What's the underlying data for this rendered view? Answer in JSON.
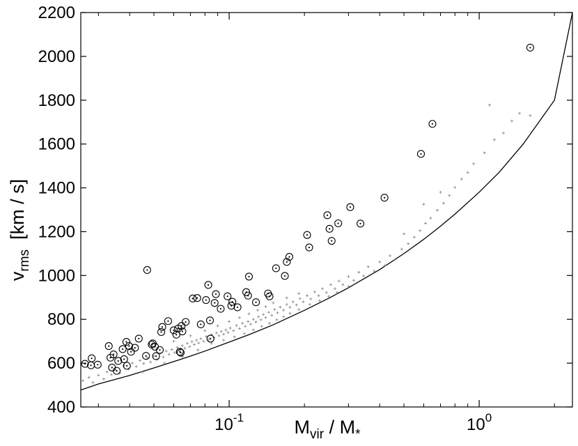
{
  "chart_data": {
    "type": "scatter",
    "title": "",
    "xlabel": {
      "main": "M",
      "sub1": "vir",
      "sep": " / M",
      "sub2": "*"
    },
    "ylabel": {
      "main": "v",
      "sub": "rms",
      "unit": "[km / s]"
    },
    "x_scale": "log",
    "xlim": [
      0.0255,
      2.36
    ],
    "ylim": [
      400,
      2200
    ],
    "grid": false,
    "legend": "none",
    "yticks": [
      400,
      600,
      800,
      1000,
      1200,
      1400,
      1600,
      1800,
      2000,
      2200
    ],
    "ytick_labels": [
      "400",
      "600",
      "800",
      "1000",
      "1200",
      "1400",
      "1600",
      "1800",
      "2000",
      "2200"
    ],
    "xticks": [
      {
        "value": 0.1,
        "base": "10",
        "exp": "-1"
      },
      {
        "value": 1.0,
        "base": "10",
        "exp": "0"
      }
    ],
    "fit_curve": {
      "x": [
        0.0255,
        0.03,
        0.04,
        0.05,
        0.06,
        0.07,
        0.08,
        0.1,
        0.12,
        0.15,
        0.2,
        0.25,
        0.3,
        0.4,
        0.5,
        0.6,
        0.7,
        0.8,
        1.0,
        1.2,
        1.5,
        2.0,
        2.36
      ],
      "y": [
        477,
        505,
        544,
        578,
        607,
        632,
        655,
        696,
        730,
        775,
        841,
        896,
        944,
        1027,
        1100,
        1165,
        1225,
        1280,
        1380,
        1470,
        1600,
        1800,
        2200
      ],
      "color": "#000000"
    },
    "series": [
      {
        "marker": "open-circle-with-dot",
        "color": "#000000",
        "points": [
          [
            0.0265,
            597
          ],
          [
            0.028,
            590
          ],
          [
            0.0282,
            622
          ],
          [
            0.0298,
            593
          ],
          [
            0.033,
            678
          ],
          [
            0.0335,
            625
          ],
          [
            0.034,
            580
          ],
          [
            0.0345,
            640
          ],
          [
            0.0355,
            565
          ],
          [
            0.036,
            610
          ],
          [
            0.0375,
            664
          ],
          [
            0.038,
            618
          ],
          [
            0.0388,
            697
          ],
          [
            0.039,
            588
          ],
          [
            0.0398,
            678
          ],
          [
            0.0405,
            652
          ],
          [
            0.042,
            670
          ],
          [
            0.0435,
            712
          ],
          [
            0.0465,
            633
          ],
          [
            0.047,
            1025
          ],
          [
            0.049,
            685
          ],
          [
            0.0495,
            690
          ],
          [
            0.0505,
            675
          ],
          [
            0.051,
            632
          ],
          [
            0.0528,
            660
          ],
          [
            0.0535,
            742
          ],
          [
            0.054,
            765
          ],
          [
            0.057,
            792
          ],
          [
            0.06,
            750
          ],
          [
            0.0615,
            730
          ],
          [
            0.0625,
            758
          ],
          [
            0.0635,
            652
          ],
          [
            0.064,
            648
          ],
          [
            0.0645,
            770
          ],
          [
            0.065,
            745
          ],
          [
            0.067,
            788
          ],
          [
            0.0715,
            895
          ],
          [
            0.0745,
            897
          ],
          [
            0.077,
            777
          ],
          [
            0.0808,
            888
          ],
          [
            0.0825,
            957
          ],
          [
            0.0838,
            795
          ],
          [
            0.0842,
            712
          ],
          [
            0.0875,
            875
          ],
          [
            0.0885,
            915
          ],
          [
            0.0925,
            848
          ],
          [
            0.0985,
            905
          ],
          [
            0.102,
            862
          ],
          [
            0.103,
            880
          ],
          [
            0.108,
            855
          ],
          [
            0.117,
            924
          ],
          [
            0.119,
            908
          ],
          [
            0.12,
            995
          ],
          [
            0.128,
            878
          ],
          [
            0.143,
            918
          ],
          [
            0.145,
            905
          ],
          [
            0.154,
            1033
          ],
          [
            0.167,
            998
          ],
          [
            0.17,
            1062
          ],
          [
            0.174,
            1085
          ],
          [
            0.205,
            1185
          ],
          [
            0.209,
            1128
          ],
          [
            0.247,
            1275
          ],
          [
            0.252,
            1213
          ],
          [
            0.257,
            1158
          ],
          [
            0.273,
            1238
          ],
          [
            0.305,
            1312
          ],
          [
            0.335,
            1237
          ],
          [
            0.418,
            1355
          ],
          [
            0.585,
            1555
          ],
          [
            0.65,
            1692
          ],
          [
            1.6,
            2040
          ]
        ]
      },
      {
        "marker": "plus",
        "color": "#8a8a8a",
        "points": [
          [
            0.026,
            520
          ],
          [
            0.0275,
            535
          ],
          [
            0.0285,
            512
          ],
          [
            0.03,
            545
          ],
          [
            0.0315,
            528
          ],
          [
            0.0325,
            560
          ],
          [
            0.0338,
            548
          ],
          [
            0.035,
            570
          ],
          [
            0.0365,
            555
          ],
          [
            0.038,
            588
          ],
          [
            0.0395,
            572
          ],
          [
            0.041,
            600
          ],
          [
            0.0425,
            585
          ],
          [
            0.044,
            612
          ],
          [
            0.0455,
            598
          ],
          [
            0.047,
            625
          ],
          [
            0.0485,
            605
          ],
          [
            0.05,
            632
          ],
          [
            0.0515,
            618
          ],
          [
            0.053,
            645
          ],
          [
            0.0545,
            628
          ],
          [
            0.056,
            655
          ],
          [
            0.0575,
            640
          ],
          [
            0.059,
            662
          ],
          [
            0.0605,
            648
          ],
          [
            0.062,
            672
          ],
          [
            0.0635,
            660
          ],
          [
            0.065,
            680
          ],
          [
            0.0665,
            668
          ],
          [
            0.068,
            690
          ],
          [
            0.0695,
            675
          ],
          [
            0.071,
            698
          ],
          [
            0.0725,
            685
          ],
          [
            0.074,
            705
          ],
          [
            0.0755,
            692
          ],
          [
            0.077,
            712
          ],
          [
            0.079,
            700
          ],
          [
            0.081,
            722
          ],
          [
            0.083,
            708
          ],
          [
            0.085,
            730
          ],
          [
            0.087,
            716
          ],
          [
            0.089,
            738
          ],
          [
            0.091,
            725
          ],
          [
            0.093,
            745
          ],
          [
            0.095,
            732
          ],
          [
            0.097,
            752
          ],
          [
            0.099,
            740
          ],
          [
            0.101,
            760
          ],
          [
            0.104,
            748
          ],
          [
            0.107,
            772
          ],
          [
            0.11,
            758
          ],
          [
            0.113,
            782
          ],
          [
            0.116,
            768
          ],
          [
            0.119,
            790
          ],
          [
            0.122,
            778
          ],
          [
            0.125,
            800
          ],
          [
            0.128,
            788
          ],
          [
            0.131,
            812
          ],
          [
            0.134,
            798
          ],
          [
            0.137,
            822
          ],
          [
            0.14,
            808
          ],
          [
            0.144,
            832
          ],
          [
            0.148,
            818
          ],
          [
            0.152,
            845
          ],
          [
            0.156,
            830
          ],
          [
            0.16,
            856
          ],
          [
            0.165,
            842
          ],
          [
            0.17,
            868
          ],
          [
            0.175,
            855
          ],
          [
            0.18,
            880
          ],
          [
            0.186,
            866
          ],
          [
            0.192,
            895
          ],
          [
            0.198,
            880
          ],
          [
            0.205,
            908
          ],
          [
            0.212,
            893
          ],
          [
            0.22,
            925
          ],
          [
            0.228,
            908
          ],
          [
            0.236,
            940
          ],
          [
            0.245,
            922
          ],
          [
            0.255,
            958
          ],
          [
            0.265,
            940
          ],
          [
            0.275,
            975
          ],
          [
            0.285,
            958
          ],
          [
            0.3,
            995
          ],
          [
            0.315,
            978
          ],
          [
            0.33,
            1015
          ],
          [
            0.345,
            998
          ],
          [
            0.36,
            1040
          ],
          [
            0.38,
            1020
          ],
          [
            0.4,
            1062
          ],
          [
            0.42,
            1045
          ],
          [
            0.44,
            1090
          ],
          [
            0.46,
            1072
          ],
          [
            0.49,
            1120
          ],
          [
            0.52,
            1145
          ],
          [
            0.55,
            1175
          ],
          [
            0.58,
            1205
          ],
          [
            0.61,
            1238
          ],
          [
            0.64,
            1262
          ],
          [
            0.68,
            1298
          ],
          [
            0.72,
            1330
          ],
          [
            0.76,
            1365
          ],
          [
            0.8,
            1402
          ],
          [
            0.85,
            1440
          ],
          [
            0.9,
            1470
          ],
          [
            0.95,
            1510
          ],
          [
            1.05,
            1560
          ],
          [
            1.15,
            1620
          ],
          [
            1.25,
            1650
          ],
          [
            1.35,
            1705
          ],
          [
            1.45,
            1740
          ],
          [
            1.6,
            1730
          ],
          [
            1.1,
            1778
          ],
          [
            0.6,
            1325
          ],
          [
            0.7,
            1380
          ],
          [
            0.5,
            1190
          ],
          [
            0.045,
            560
          ],
          [
            0.055,
            600
          ],
          [
            0.065,
            630
          ],
          [
            0.075,
            660
          ],
          [
            0.085,
            690
          ],
          [
            0.095,
            705
          ],
          [
            0.105,
            720
          ],
          [
            0.115,
            735
          ],
          [
            0.125,
            752
          ],
          [
            0.135,
            768
          ],
          [
            0.145,
            782
          ],
          [
            0.155,
            798
          ],
          [
            0.165,
            812
          ],
          [
            0.175,
            828
          ],
          [
            0.19,
            845
          ],
          [
            0.21,
            868
          ],
          [
            0.23,
            885
          ],
          [
            0.25,
            905
          ],
          [
            0.27,
            922
          ],
          [
            0.3,
            950
          ],
          [
            0.06,
            700
          ],
          [
            0.07,
            725
          ],
          [
            0.08,
            748
          ],
          [
            0.09,
            770
          ],
          [
            0.1,
            790
          ],
          [
            0.11,
            808
          ],
          [
            0.12,
            825
          ],
          [
            0.13,
            842
          ],
          [
            0.14,
            858
          ],
          [
            0.15,
            875
          ],
          [
            0.17,
            898
          ],
          [
            0.19,
            918
          ]
        ]
      }
    ]
  }
}
